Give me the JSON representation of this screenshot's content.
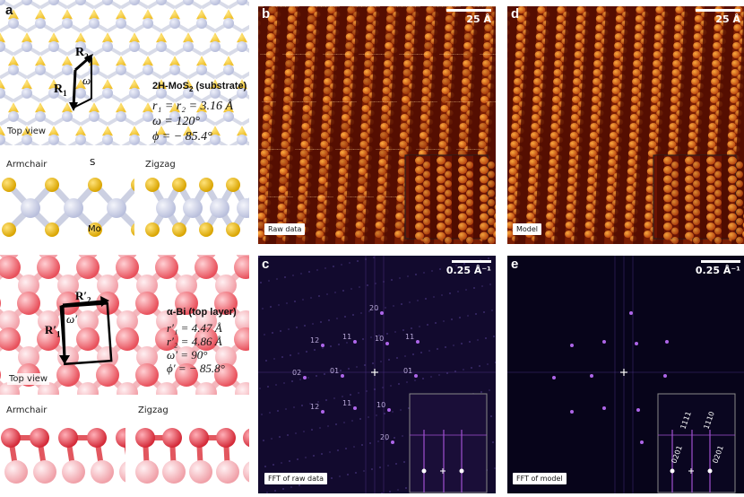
{
  "panels": {
    "a": {
      "letter": "a",
      "vec1": "R",
      "vec1_sub": "1",
      "vec2": "R",
      "vec2_sub": "2",
      "angle": "ω",
      "title": "2H-MoS",
      "title_sub": "2",
      "title_rest": " (substrate)",
      "line1": "r₁ = r₂ = 3.16 Å",
      "line2": "ω = 120°",
      "line3": "ϕ = − 85.4°",
      "view": "Top view",
      "armchair": "Armchair",
      "zigzag": "Zigzag",
      "atom_s": "S",
      "atom_mo": "Mo"
    },
    "a2": {
      "vec1": "R′",
      "vec1_sub": "1",
      "vec2": "R′",
      "vec2_sub": "2",
      "angle": "ω′",
      "title": "α-Bi (top layer)",
      "line1": "r′₁ = 4.47 Å",
      "line2": "r′₂ = 4.86 Å",
      "line3": "ω′ = 90°",
      "line4": "ϕ′ = − 85.8°",
      "view": "Top view",
      "armchair": "Armchair",
      "zigzag": "Zigzag"
    },
    "b": {
      "letter": "b",
      "scale": "25 Å",
      "tag": "Raw data"
    },
    "d": {
      "letter": "d",
      "scale": "25 Å",
      "tag": "Model"
    },
    "c": {
      "letter": "c",
      "scale": "0.25 Å⁻¹",
      "tag": "FFT of raw data",
      "spots": [
        "20",
        "12",
        "11",
        "10",
        "11",
        "02",
        "01",
        "01",
        "12",
        "11",
        "10",
        "20"
      ]
    },
    "e": {
      "letter": "e",
      "scale": "0.25 Å⁻¹",
      "tag": "FFT of model",
      "spots": [
        "1111",
        "1110",
        "0201",
        "0201"
      ]
    }
  },
  "colors": {
    "mo": "#b9bfdc",
    "s": "#f0c230",
    "bi": "#e8505b",
    "bi_light": "#f2a0a8",
    "stm_dark": "#4a0a00",
    "stm_bright": "#ffb040",
    "fft_bg": "#0a0620",
    "fft_spot": "#c070ff"
  }
}
